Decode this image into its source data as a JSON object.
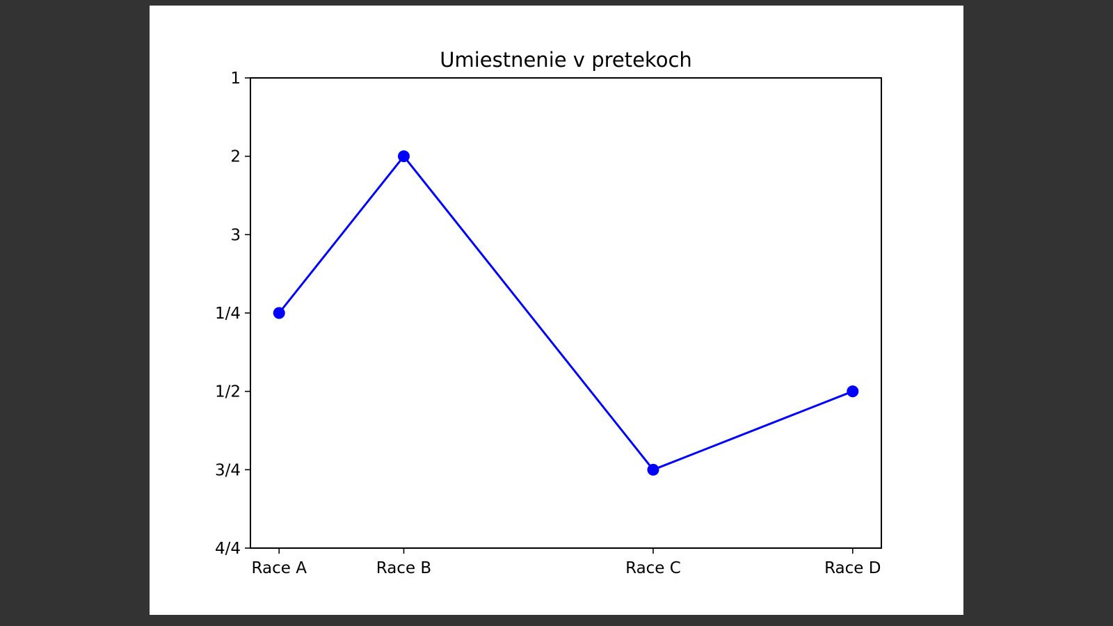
{
  "chart_data": {
    "type": "line",
    "title": "Umiestnenie v pretekoch",
    "xlabel": "",
    "ylabel": "",
    "x": [
      1,
      2,
      4,
      5.6
    ],
    "x_ticks": [
      {
        "value": 1,
        "label": "Race A"
      },
      {
        "value": 2,
        "label": "Race B"
      },
      {
        "value": 4,
        "label": "Race C"
      },
      {
        "value": 5.6,
        "label": "Race D"
      }
    ],
    "y_ticks": [
      {
        "value": 1,
        "label": "1"
      },
      {
        "value": 2,
        "label": "2"
      },
      {
        "value": 3,
        "label": "3"
      },
      {
        "value": 4,
        "label": "1/4"
      },
      {
        "value": 5,
        "label": "1/2"
      },
      {
        "value": 6,
        "label": "3/4"
      },
      {
        "value": 7,
        "label": "4/4"
      }
    ],
    "xlim": [
      0.77,
      5.83
    ],
    "ylim": [
      1,
      7
    ],
    "y_inverted": true,
    "grid": false,
    "series": [
      {
        "values": [
          4,
          2,
          6,
          5
        ],
        "color": "#0000ff"
      }
    ]
  },
  "colors": {
    "page_background": "#333333",
    "figure_background": "#ffffff",
    "series": "#0000ff",
    "axes": "#000000"
  }
}
